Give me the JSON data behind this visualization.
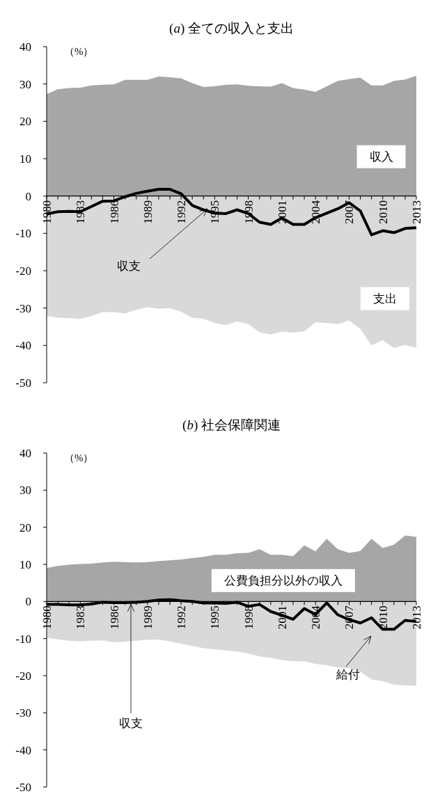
{
  "chart_data": [
    {
      "type": "area",
      "title": "(*a*) 全ての収入と支出",
      "ylabel": "（%）",
      "x": [
        1980,
        1981,
        1982,
        1983,
        1984,
        1985,
        1986,
        1987,
        1988,
        1989,
        1990,
        1991,
        1992,
        1993,
        1994,
        1995,
        1996,
        1997,
        1998,
        1999,
        2000,
        2001,
        2002,
        2003,
        2004,
        2005,
        2006,
        2007,
        2008,
        2009,
        2010,
        2011,
        2012,
        2013
      ],
      "xlim": [
        1980,
        2013
      ],
      "xticks": [
        1980,
        1983,
        1986,
        1989,
        1992,
        1995,
        1998,
        2001,
        2004,
        2007,
        2010,
        2013
      ],
      "ylim": [
        -50,
        40
      ],
      "yticks": [
        -50,
        -40,
        -30,
        -20,
        -10,
        0,
        10,
        20,
        30,
        40
      ],
      "series": [
        {
          "name": "収入",
          "color": "#a6a6a6",
          "values": [
            27.3,
            28.6,
            28.9,
            29.0,
            29.6,
            29.8,
            29.9,
            31.1,
            31.1,
            31.1,
            32.0,
            31.8,
            31.5,
            30.2,
            29.2,
            29.4,
            29.8,
            29.9,
            29.5,
            29.4,
            29.3,
            30.2,
            28.9,
            28.5,
            27.9,
            29.4,
            30.8,
            31.3,
            31.7,
            29.6,
            29.6,
            30.8,
            31.2,
            32.2
          ]
        },
        {
          "name": "支出",
          "color": "#d9d9d9",
          "values": [
            -32.1,
            -32.6,
            -32.7,
            -32.9,
            -32.1,
            -31.1,
            -31.1,
            -31.4,
            -30.5,
            -29.8,
            -30.2,
            -30.0,
            -31.0,
            -32.6,
            -32.9,
            -34.0,
            -34.6,
            -33.6,
            -34.3,
            -36.5,
            -37.1,
            -36.3,
            -36.6,
            -36.2,
            -33.8,
            -34.0,
            -34.3,
            -33.3,
            -35.6,
            -40.0,
            -38.6,
            -40.7,
            -39.9,
            -40.7
          ]
        },
        {
          "name": "収支",
          "type": "line",
          "color": "#000000",
          "values": [
            -4.8,
            -4.2,
            -4.1,
            -4.2,
            -2.8,
            -1.4,
            -1.3,
            -0.2,
            0.7,
            1.3,
            1.8,
            1.8,
            0.6,
            -2.5,
            -3.7,
            -4.6,
            -4.7,
            -3.7,
            -4.7,
            -7.0,
            -7.6,
            -5.9,
            -7.6,
            -7.6,
            -5.8,
            -4.6,
            -3.4,
            -1.8,
            -4.0,
            -10.4,
            -9.3,
            -9.8,
            -8.7,
            -8.5
          ]
        }
      ]
    },
    {
      "type": "area",
      "title": "(*b*) 社会保障関連",
      "ylabel": "（%）",
      "x": [
        1980,
        1981,
        1982,
        1983,
        1984,
        1985,
        1986,
        1987,
        1988,
        1989,
        1990,
        1991,
        1992,
        1993,
        1994,
        1995,
        1996,
        1997,
        1998,
        1999,
        2000,
        2001,
        2002,
        2003,
        2004,
        2005,
        2006,
        2007,
        2008,
        2009,
        2010,
        2011,
        2012,
        2013
      ],
      "xlim": [
        1980,
        2013
      ],
      "xticks": [
        1980,
        1983,
        1986,
        1989,
        1992,
        1995,
        1998,
        2001,
        2004,
        2007,
        2010,
        2013
      ],
      "ylim": [
        -50,
        40
      ],
      "yticks": [
        -50,
        -40,
        -30,
        -20,
        -10,
        0,
        10,
        20,
        30,
        40
      ],
      "series": [
        {
          "name": "公費負担分以外の収入",
          "color": "#a6a6a6",
          "values": [
            9.0,
            9.6,
            9.9,
            10.1,
            10.2,
            10.5,
            10.7,
            10.6,
            10.5,
            10.6,
            10.9,
            11.1,
            11.3,
            11.7,
            12.0,
            12.6,
            12.6,
            13.0,
            13.1,
            14.1,
            12.6,
            12.6,
            12.2,
            15.1,
            13.5,
            16.9,
            14.1,
            13.1,
            13.6,
            16.9,
            14.4,
            15.3,
            17.8,
            17.4
          ]
        },
        {
          "name": "給付",
          "color": "#d9d9d9",
          "values": [
            -9.8,
            -10.2,
            -10.6,
            -10.7,
            -10.6,
            -10.5,
            -11.0,
            -10.8,
            -10.6,
            -10.3,
            -10.3,
            -10.7,
            -11.4,
            -12.0,
            -12.6,
            -12.9,
            -13.2,
            -13.5,
            -14.0,
            -14.8,
            -15.2,
            -15.8,
            -16.1,
            -16.1,
            -16.8,
            -17.2,
            -17.8,
            -18.0,
            -18.9,
            -21.0,
            -21.5,
            -22.4,
            -22.6,
            -22.7
          ]
        },
        {
          "name": "収支",
          "type": "line",
          "color": "#000000",
          "values": [
            -0.8,
            -0.8,
            -0.9,
            -0.9,
            -0.7,
            -0.2,
            -0.3,
            -0.3,
            -0.2,
            0.0,
            0.4,
            0.5,
            0.2,
            0.0,
            -0.4,
            -0.4,
            -0.5,
            -0.2,
            -1.3,
            -0.8,
            -2.7,
            -3.7,
            -4.8,
            -1.9,
            -3.5,
            -0.4,
            -3.6,
            -4.9,
            -5.8,
            -4.4,
            -7.5,
            -7.5,
            -5.1,
            -5.4
          ]
        }
      ]
    }
  ]
}
